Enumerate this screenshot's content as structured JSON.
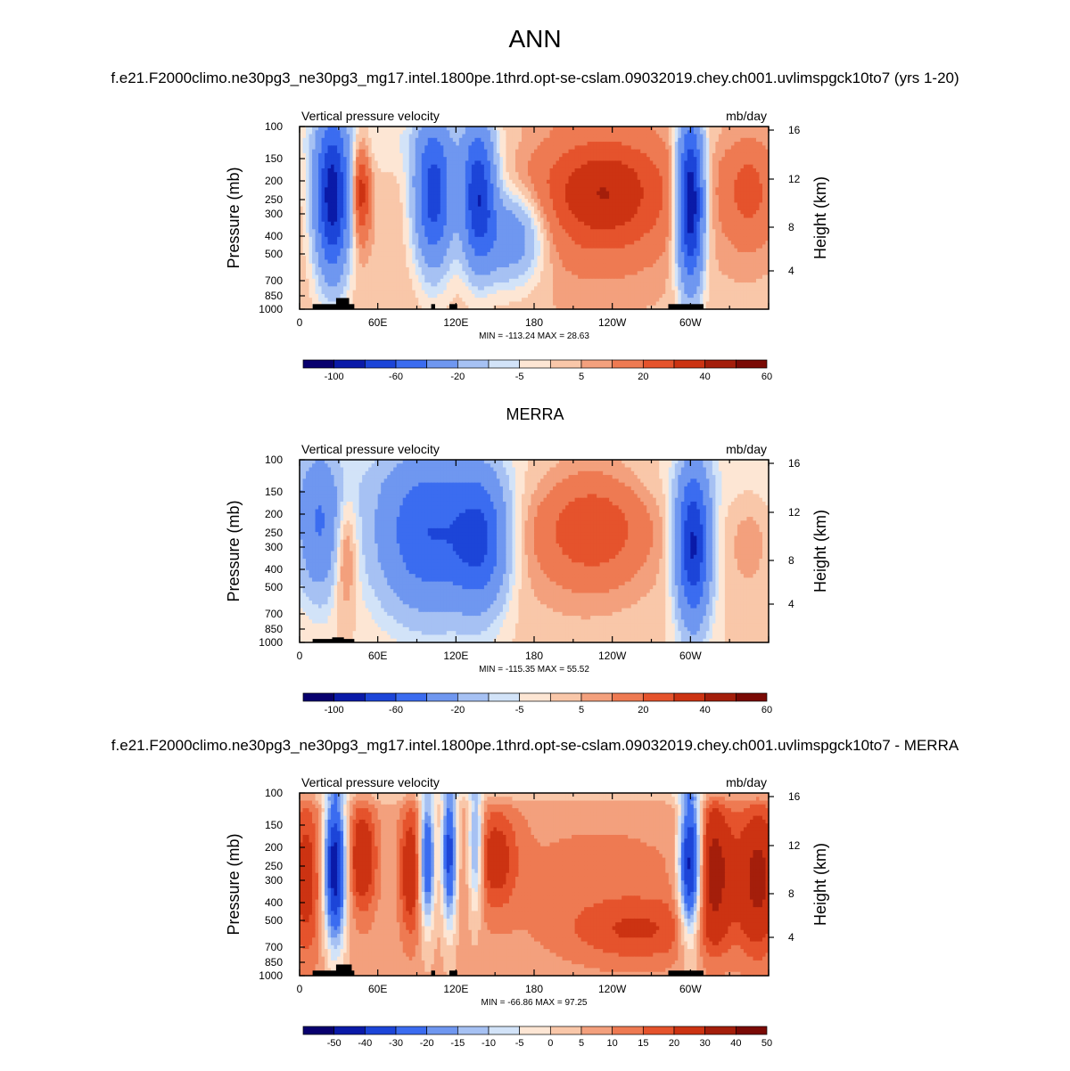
{
  "figure": {
    "season": "ANN",
    "case_title": "f.e21.F2000climo.ne30pg3_ne30pg3_mg17.intel.1800pe.1thrd.opt-se-cslam.09032019.chey.ch001.uvlimspgck10to7 (yrs 1-20)",
    "obs_title": "MERRA",
    "diff_title": "f.e21.F2000climo.ne30pg3_ne30pg3_mg17.intel.1800pe.1thrd.opt-se-cslam.09032019.chey.ch001.uvlimspgck10to7 - MERRA"
  },
  "chart_data": [
    {
      "type": "heatmap",
      "panel": "model",
      "variable": "Vertical pressure velocity",
      "units": "mb/day",
      "ylabel": "Pressure (mb)",
      "ylabel_right": "Height (km)",
      "x_ticks": [
        "0",
        "60E",
        "120E",
        "180",
        "120W",
        "60W"
      ],
      "y_ticks": [
        "100",
        "150",
        "200",
        "250",
        "300",
        "400",
        "500",
        "700",
        "850",
        "1000"
      ],
      "height_ticks": [
        "16",
        "12",
        "8",
        "4"
      ],
      "stats": "MIN = -113.24  MAX =  28.63",
      "min": -113.24,
      "max": 28.63,
      "colorbar_labels": [
        "-100",
        "-60",
        "-20",
        "-5",
        "5",
        "20",
        "40",
        "60"
      ]
    },
    {
      "type": "heatmap",
      "panel": "obs",
      "variable": "Vertical pressure velocity",
      "units": "mb/day",
      "ylabel": "Pressure (mb)",
      "ylabel_right": "Height (km)",
      "x_ticks": [
        "0",
        "60E",
        "120E",
        "180",
        "120W",
        "60W"
      ],
      "y_ticks": [
        "100",
        "150",
        "200",
        "250",
        "300",
        "400",
        "500",
        "700",
        "850",
        "1000"
      ],
      "height_ticks": [
        "16",
        "12",
        "8",
        "4"
      ],
      "stats": "MIN = -115.35  MAX =  55.52",
      "min": -115.35,
      "max": 55.52,
      "colorbar_labels": [
        "-100",
        "-60",
        "-20",
        "-5",
        "5",
        "20",
        "40",
        "60"
      ]
    },
    {
      "type": "heatmap",
      "panel": "diff",
      "variable": "Vertical pressure velocity",
      "units": "mb/day",
      "ylabel": "Pressure (mb)",
      "ylabel_right": "Height (km)",
      "x_ticks": [
        "0",
        "60E",
        "120E",
        "180",
        "120W",
        "60W"
      ],
      "y_ticks": [
        "100",
        "150",
        "200",
        "250",
        "300",
        "400",
        "500",
        "700",
        "850",
        "1000"
      ],
      "height_ticks": [
        "16",
        "12",
        "8",
        "4"
      ],
      "stats": "MIN = -66.86  MAX =  97.25",
      "min": -66.86,
      "max": 97.25,
      "colorbar_labels": [
        "-50",
        "-40",
        "-30",
        "-20",
        "-15",
        "-10",
        "-5",
        "0",
        "5",
        "10",
        "15",
        "20",
        "30",
        "40",
        "50"
      ]
    }
  ],
  "colors": {
    "palette": [
      "#08006e",
      "#0a1aa8",
      "#1c45d8",
      "#3b6cf0",
      "#6f97f0",
      "#a6c1f3",
      "#d2e3f8",
      "#fde6d4",
      "#f9c7a9",
      "#f3a07d",
      "#ee7a52",
      "#e5532c",
      "#cc3312",
      "#a41e0b",
      "#7a0a05"
    ]
  }
}
